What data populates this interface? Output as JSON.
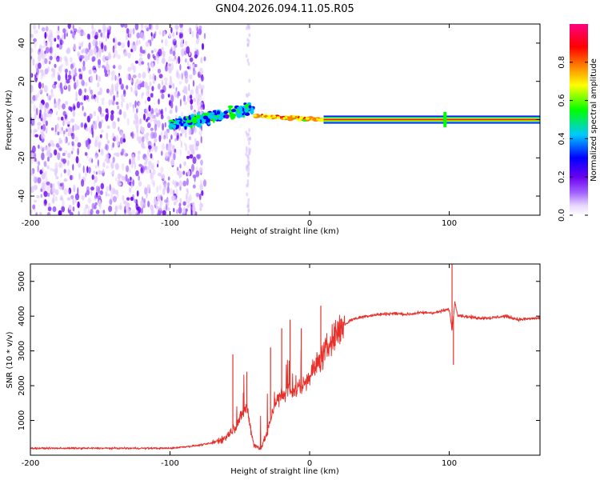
{
  "figure_title": "GN04.2026.094.11.05.R05",
  "chart_data": [
    {
      "type": "heatmap",
      "title": "GN04.2026.094.11.05.R05",
      "xlabel": "Height of straight line (km)",
      "ylabel": "Frequency (Hz)",
      "xlim": [
        -200,
        165
      ],
      "ylim": [
        -50,
        50
      ],
      "xticks": [
        -200,
        -100,
        0,
        100
      ],
      "yticks": [
        -40,
        -20,
        0,
        20,
        40
      ],
      "colorbar": {
        "label": "Normalized spectral amplitude",
        "range": [
          0.0,
          1.0
        ],
        "ticks": [
          0.0,
          0.2,
          0.4,
          0.6,
          0.8
        ],
        "colormap": [
          "#ffffff",
          "#e9d6ff",
          "#a060ff",
          "#6a00f0",
          "#0000ff",
          "#00c8ff",
          "#00ff00",
          "#ffff00",
          "#ff8000",
          "#ff0000",
          "#ff0080"
        ]
      },
      "features": [
        {
          "name": "diffuse noise",
          "x_range": [
            -200,
            -75
          ],
          "freq_range": [
            -50,
            50
          ],
          "level": 0.1
        },
        {
          "name": "turbulent blob",
          "x_range": [
            -100,
            -40
          ],
          "freq_range": [
            -5,
            10
          ],
          "level": 0.45
        },
        {
          "name": "transition band",
          "x_range": [
            -40,
            10
          ],
          "freq_range": [
            -2,
            3
          ],
          "level": 0.7
        },
        {
          "name": "steady line",
          "x_range": [
            10,
            165
          ],
          "freq_range": [
            -1,
            1
          ],
          "level": 0.95
        },
        {
          "name": "spike",
          "x": 97,
          "freq_range": [
            -4,
            4
          ],
          "level": 0.5
        }
      ]
    },
    {
      "type": "line",
      "xlabel": "Height of straight line (km)",
      "ylabel": "SNR (10 * v/v)",
      "xlim": [
        -200,
        165
      ],
      "ylim": [
        0,
        5500
      ],
      "xticks": [
        -200,
        -100,
        0,
        100
      ],
      "yticks": [
        1000,
        2000,
        3000,
        4000,
        5000
      ],
      "color": "#e8302a",
      "series": [
        {
          "name": "SNR",
          "x": [
            -200,
            -150,
            -100,
            -80,
            -70,
            -60,
            -52,
            -45,
            -40,
            -35,
            -30,
            -25,
            -20,
            -15,
            -10,
            -5,
            0,
            5,
            10,
            15,
            20,
            25,
            30,
            40,
            50,
            60,
            70,
            80,
            90,
            95,
            100,
            102,
            104,
            106,
            110,
            120,
            130,
            140,
            150,
            165
          ],
          "y": [
            200,
            200,
            200,
            280,
            350,
            500,
            900,
            1400,
            300,
            180,
            700,
            1500,
            1700,
            1800,
            1900,
            2000,
            2300,
            2600,
            2900,
            3250,
            3550,
            3750,
            3900,
            4000,
            4050,
            4080,
            4050,
            4100,
            4100,
            4150,
            4200,
            3600,
            4400,
            4050,
            4000,
            3950,
            3950,
            4000,
            3900,
            3950
          ]
        }
      ],
      "spike_peaks": [
        {
          "x": -55,
          "y": 2900
        },
        {
          "x": -45,
          "y": 2400
        },
        {
          "x": -28,
          "y": 3100
        },
        {
          "x": -20,
          "y": 3650
        },
        {
          "x": -14,
          "y": 3900
        },
        {
          "x": -6,
          "y": 3650
        },
        {
          "x": 8,
          "y": 4300
        },
        {
          "x": 102,
          "y": 5600
        },
        {
          "x": 103,
          "y": 2600
        }
      ]
    }
  ]
}
